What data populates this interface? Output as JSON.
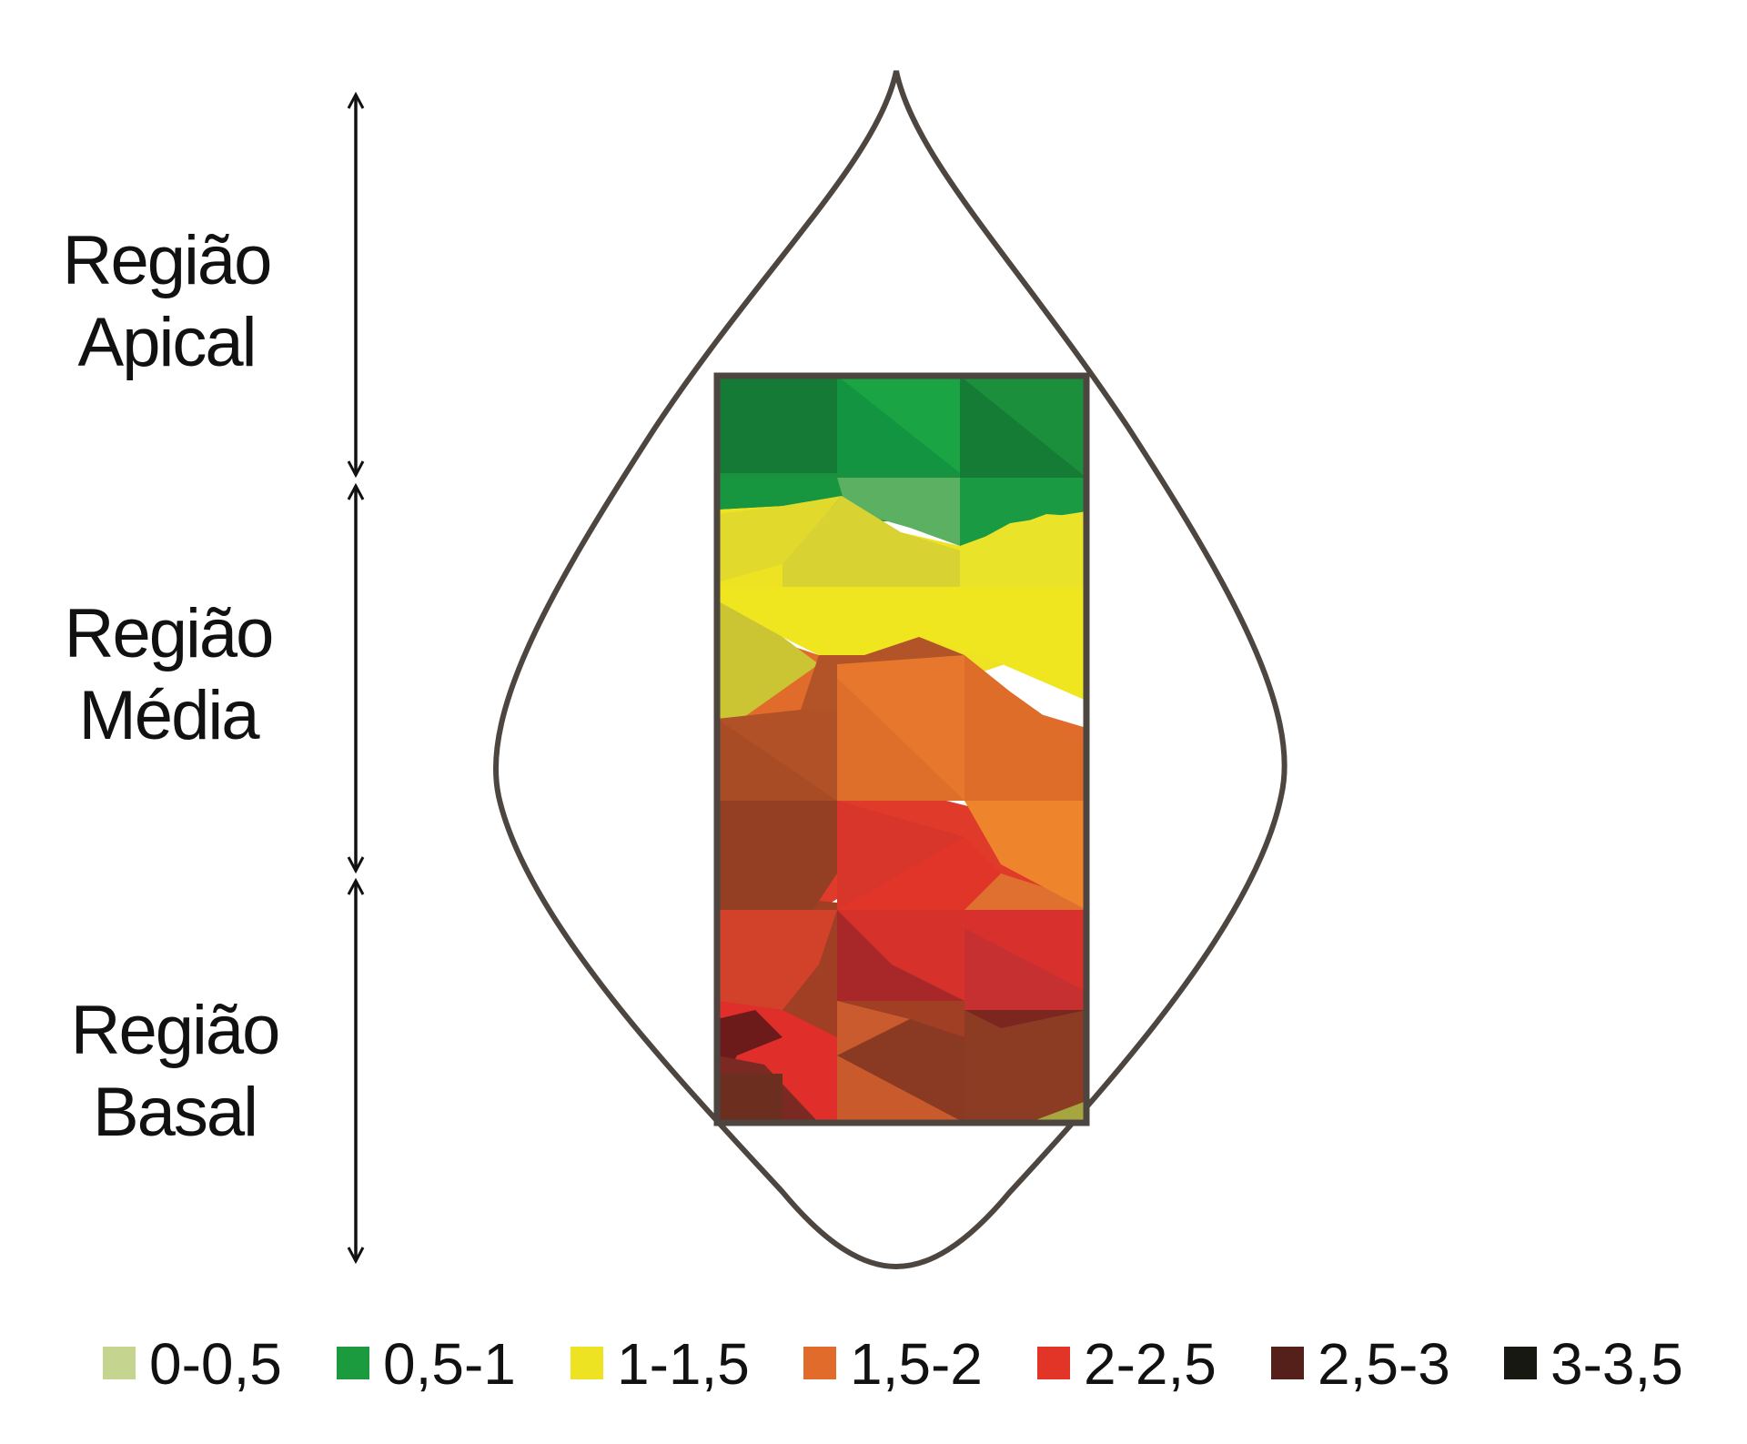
{
  "regions": [
    {
      "line1": "Região",
      "line2": "Apical"
    },
    {
      "line1": "Região",
      "line2": "Média"
    },
    {
      "line1": "Região",
      "line2": "Basal"
    }
  ],
  "legend": [
    {
      "label": "0-0,5",
      "color": "#c5d58f"
    },
    {
      "label": "0,5-1",
      "color": "#1b9b3e"
    },
    {
      "label": "1-1,5",
      "color": "#eee322"
    },
    {
      "label": "1,5-2",
      "color": "#e06b2a"
    },
    {
      "label": "2-2,5",
      "color": "#e23427"
    },
    {
      "label": "2,5-3",
      "color": "#55201a"
    },
    {
      "label": "3-3,5",
      "color": "#181813"
    }
  ],
  "colors": {
    "leaf_outline": "#4d4640",
    "arrow": "#111111",
    "map_frame": "#4d4640"
  }
}
